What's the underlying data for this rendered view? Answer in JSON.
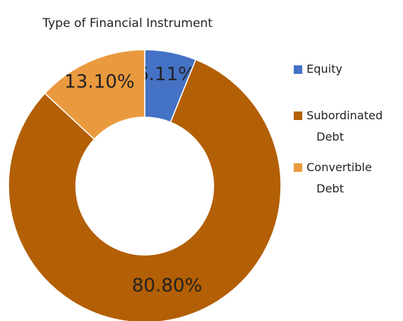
{
  "chart_data": {
    "type": "donut",
    "title": "Type of Financial Instrument",
    "categories": [
      "Equity",
      "Subordinated Debt",
      "Convertible Debt"
    ],
    "values": [
      6.11,
      80.8,
      13.1
    ],
    "value_labels": [
      "6.11%",
      "80.80%",
      "13.10%"
    ],
    "colors": [
      "#4472c4",
      "#b35f05",
      "#ea9a3e"
    ],
    "legend": "right"
  }
}
